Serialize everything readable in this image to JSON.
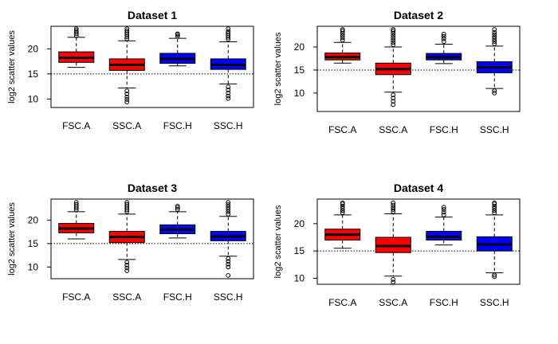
{
  "chart_data": [
    {
      "type": "box",
      "title": "Dataset 1",
      "ylabel": "log2 scatter values",
      "ylim": [
        8.3,
        24.5
      ],
      "yticks": [
        10,
        15,
        20
      ],
      "reference_line": 15,
      "categories": [
        "FSC.A",
        "SSC.A",
        "FSC.H",
        "SSC.H"
      ],
      "colors": [
        "#ff0000",
        "#ff0000",
        "#0000ff",
        "#0000ff"
      ],
      "boxes": [
        {
          "whisker_low": 16.3,
          "q1": 17.3,
          "median": 18.2,
          "q3": 19.4,
          "whisker_high": 22.3,
          "outliers_low": [],
          "outliers_high": [
            22.6,
            23.0,
            23.4,
            23.7,
            24.0
          ]
        },
        {
          "whisker_low": 12.2,
          "q1": 15.7,
          "median": 16.8,
          "q3": 18.0,
          "whisker_high": 21.6,
          "outliers_low": [
            11.6,
            11.0,
            10.4,
            9.9,
            9.4
          ],
          "outliers_high": [
            22.0,
            22.4,
            22.8,
            23.2,
            23.6,
            24.0
          ]
        },
        {
          "whisker_low": 16.6,
          "q1": 17.1,
          "median": 18.0,
          "q3": 19.1,
          "whisker_high": 22.1,
          "outliers_low": [],
          "outliers_high": [
            22.5,
            22.8,
            23.0
          ]
        },
        {
          "whisker_low": 13.0,
          "q1": 15.9,
          "median": 16.8,
          "q3": 18.0,
          "whisker_high": 21.4,
          "outliers_low": [
            12.4,
            11.8,
            11.2,
            10.6,
            10.1
          ],
          "outliers_high": [
            21.9,
            22.3,
            22.7,
            23.1,
            23.5,
            24.0
          ]
        }
      ]
    },
    {
      "type": "box",
      "title": "Dataset 2",
      "ylabel": "log2 scatter values",
      "ylim": [
        6.0,
        24.5
      ],
      "yticks": [
        10,
        15,
        20
      ],
      "reference_line": 15,
      "categories": [
        "FSC.A",
        "SSC.A",
        "FSC.H",
        "SSC.H"
      ],
      "colors": [
        "#ff0000",
        "#ff0000",
        "#0000ff",
        "#0000ff"
      ],
      "boxes": [
        {
          "whisker_low": 16.5,
          "q1": 17.2,
          "median": 17.8,
          "q3": 18.7,
          "whisker_high": 21.0,
          "outliers_low": [],
          "outliers_high": [
            21.5,
            22.0,
            22.5,
            23.0,
            23.5,
            23.8
          ]
        },
        {
          "whisker_low": 10.2,
          "q1": 14.0,
          "median": 15.2,
          "q3": 16.5,
          "whisker_high": 20.0,
          "outliers_low": [
            9.6,
            8.9,
            8.2,
            7.5
          ],
          "outliers_high": [
            20.5,
            21.0,
            21.5,
            22.0,
            22.5,
            23.0,
            23.5,
            23.8
          ]
        },
        {
          "whisker_low": 16.4,
          "q1": 17.2,
          "median": 17.8,
          "q3": 18.6,
          "whisker_high": 20.6,
          "outliers_low": [],
          "outliers_high": [
            21.2,
            21.8,
            22.3,
            22.8
          ]
        },
        {
          "whisker_low": 11.0,
          "q1": 14.4,
          "median": 15.6,
          "q3": 16.8,
          "whisker_high": 20.2,
          "outliers_low": [
            10.5,
            10.0
          ],
          "outliers_high": [
            20.7,
            21.2,
            21.7,
            22.2,
            22.7,
            23.2,
            23.8
          ]
        }
      ]
    },
    {
      "type": "box",
      "title": "Dataset 3",
      "ylabel": "log2 scatter values",
      "ylim": [
        7.5,
        24.5
      ],
      "yticks": [
        10,
        15,
        20
      ],
      "reference_line": 15,
      "categories": [
        "FSC.A",
        "SSC.A",
        "FSC.H",
        "SSC.H"
      ],
      "colors": [
        "#ff0000",
        "#ff0000",
        "#0000ff",
        "#0000ff"
      ],
      "boxes": [
        {
          "whisker_low": 16.0,
          "q1": 17.3,
          "median": 18.2,
          "q3": 19.3,
          "whisker_high": 21.8,
          "outliers_low": [],
          "outliers_high": [
            22.2,
            22.6,
            23.0,
            23.4,
            23.8
          ]
        },
        {
          "whisker_low": 11.6,
          "q1": 15.2,
          "median": 16.4,
          "q3": 17.6,
          "whisker_high": 21.3,
          "outliers_low": [
            11.0,
            10.4,
            9.8,
            9.2
          ],
          "outliers_high": [
            21.8,
            22.2,
            22.6,
            23.0,
            23.4,
            23.8
          ]
        },
        {
          "whisker_low": 16.2,
          "q1": 17.1,
          "median": 18.0,
          "q3": 19.0,
          "whisker_high": 21.8,
          "outliers_low": [],
          "outliers_high": [
            22.3,
            22.7,
            23.0
          ]
        },
        {
          "whisker_low": 12.3,
          "q1": 15.6,
          "median": 16.5,
          "q3": 17.6,
          "whisker_high": 20.8,
          "outliers_low": [
            11.8,
            11.2,
            10.6,
            10.0,
            8.2
          ],
          "outliers_high": [
            21.3,
            21.8,
            22.3,
            22.8,
            23.3,
            23.8
          ]
        }
      ]
    },
    {
      "type": "box",
      "title": "Dataset 4",
      "ylabel": "log2 scatter values",
      "ylim": [
        8.9,
        24.5
      ],
      "yticks": [
        10,
        15,
        20
      ],
      "reference_line": 15,
      "categories": [
        "FSC.A",
        "SSC.A",
        "FSC.H",
        "SSC.H"
      ],
      "colors": [
        "#ff0000",
        "#ff0000",
        "#0000ff",
        "#0000ff"
      ],
      "boxes": [
        {
          "whisker_low": 15.5,
          "q1": 17.0,
          "median": 18.0,
          "q3": 19.0,
          "whisker_high": 21.6,
          "outliers_low": [],
          "outliers_high": [
            22.0,
            22.4,
            22.8,
            23.2,
            23.6,
            23.8
          ]
        },
        {
          "whisker_low": 10.4,
          "q1": 14.7,
          "median": 15.9,
          "q3": 17.5,
          "whisker_high": 21.8,
          "outliers_low": [
            9.8,
            9.3
          ],
          "outliers_high": [
            22.2,
            22.6,
            23.0,
            23.4,
            23.8
          ]
        },
        {
          "whisker_low": 16.1,
          "q1": 17.0,
          "median": 17.6,
          "q3": 18.6,
          "whisker_high": 21.2,
          "outliers_low": [],
          "outliers_high": [
            21.6,
            22.1,
            22.6,
            23.0
          ]
        },
        {
          "whisker_low": 11.0,
          "q1": 15.0,
          "median": 16.2,
          "q3": 17.6,
          "whisker_high": 21.6,
          "outliers_low": [
            10.6,
            10.3
          ],
          "outliers_high": [
            22.0,
            22.4,
            22.8,
            23.2,
            23.6,
            23.8
          ]
        }
      ]
    }
  ]
}
